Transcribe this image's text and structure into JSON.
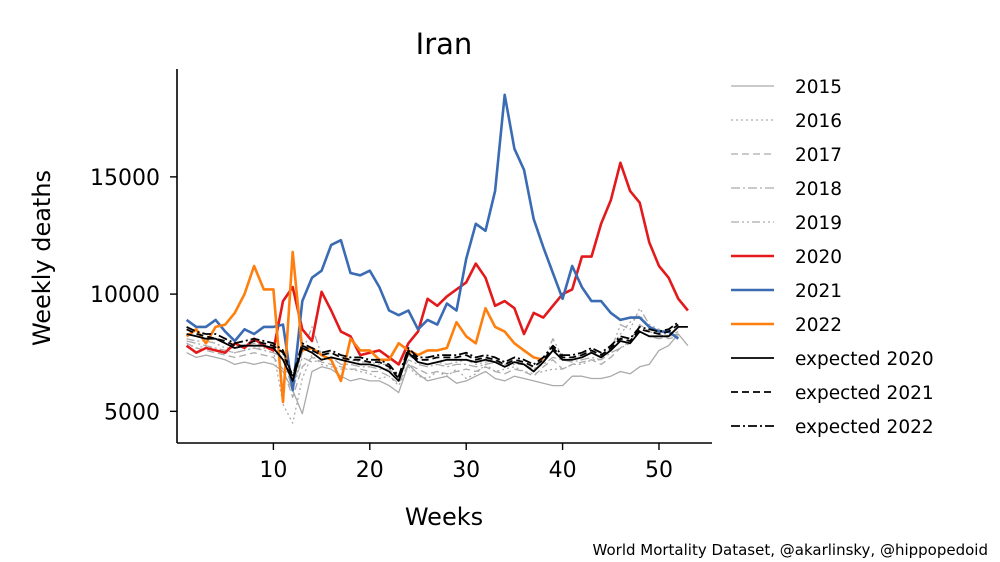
{
  "chart_data": {
    "type": "line",
    "title": "Iran",
    "xlabel": "Weeks",
    "ylabel": "Weekly deaths",
    "xlim": [
      0,
      55.5
    ],
    "ylim": [
      3650,
      19600
    ],
    "xticks": [
      10,
      20,
      30,
      40,
      50
    ],
    "yticks": [
      5000,
      10000,
      15000
    ],
    "grid": false,
    "legend_position": "right-outside",
    "credit": "World Mortality Dataset, @akarlinsky, @hippopedoid",
    "series": [
      {
        "name": "2015",
        "color": "#aaaaaa",
        "dash": "solid",
        "width": 1.3,
        "x": [
          1,
          2,
          3,
          4,
          5,
          6,
          7,
          8,
          9,
          10,
          11,
          12,
          13,
          14,
          15,
          16,
          17,
          18,
          19,
          20,
          21,
          22,
          23,
          24,
          25,
          26,
          27,
          28,
          29,
          30,
          31,
          32,
          33,
          34,
          35,
          36,
          37,
          38,
          39,
          40,
          41,
          42,
          43,
          44,
          45,
          46,
          47,
          48,
          49,
          50,
          51,
          52,
          53
        ],
        "values": [
          7500,
          7300,
          7400,
          7300,
          7200,
          7000,
          7100,
          7000,
          7100,
          7000,
          6700,
          5900,
          4900,
          6700,
          6900,
          6800,
          6500,
          6300,
          6400,
          6300,
          6300,
          6100,
          5800,
          7000,
          6600,
          6300,
          6400,
          6500,
          6200,
          6300,
          6500,
          6700,
          6400,
          6300,
          6500,
          6400,
          6300,
          6200,
          6100,
          6100,
          6500,
          6500,
          6400,
          6400,
          6500,
          6700,
          6600,
          6900,
          7000,
          7600,
          7800,
          8300,
          7800
        ]
      },
      {
        "name": "2016",
        "color": "#aaaaaa",
        "dash": "dotted",
        "width": 1.3,
        "x": [
          1,
          2,
          3,
          4,
          5,
          6,
          7,
          8,
          9,
          10,
          11,
          12,
          13,
          14,
          15,
          16,
          17,
          18,
          19,
          20,
          21,
          22,
          23,
          24,
          25,
          26,
          27,
          28,
          29,
          30,
          31,
          32,
          33,
          34,
          35,
          36,
          37,
          38,
          39,
          40,
          41,
          42,
          43,
          44,
          45,
          46,
          47,
          48,
          49,
          50,
          51,
          52
        ],
        "values": [
          7900,
          7700,
          7800,
          7600,
          7600,
          7500,
          7600,
          7700,
          7700,
          7600,
          5300,
          4500,
          6400,
          7400,
          7000,
          6900,
          6800,
          6800,
          6700,
          6600,
          6400,
          6500,
          6100,
          6900,
          6500,
          6400,
          6700,
          6500,
          6800,
          6400,
          6600,
          7000,
          6700,
          6800,
          6900,
          6700,
          6600,
          6700,
          6800,
          6800,
          7000,
          7000,
          7200,
          7200,
          7700,
          8300,
          8800,
          9100,
          8600,
          8300,
          8300,
          8500
        ]
      },
      {
        "name": "2017",
        "color": "#aaaaaa",
        "dash": "dashed",
        "width": 1.3,
        "x": [
          1,
          2,
          3,
          4,
          5,
          6,
          7,
          8,
          9,
          10,
          11,
          12,
          13,
          14,
          15,
          16,
          17,
          18,
          19,
          20,
          21,
          22,
          23,
          24,
          25,
          26,
          27,
          28,
          29,
          30,
          31,
          32,
          33,
          34,
          35,
          36,
          37,
          38,
          39,
          40,
          41,
          42,
          43,
          44,
          45,
          46,
          47,
          48,
          49,
          50,
          51,
          52
        ],
        "values": [
          7900,
          7700,
          7600,
          7500,
          7400,
          7300,
          7400,
          7500,
          7400,
          7300,
          6800,
          5600,
          6900,
          7300,
          7100,
          7000,
          6900,
          6800,
          6800,
          6700,
          6700,
          6500,
          6200,
          7000,
          6800,
          6600,
          6700,
          6600,
          6700,
          6800,
          6700,
          6900,
          6700,
          6600,
          6800,
          6700,
          6500,
          6900,
          7200,
          6800,
          7000,
          7100,
          7200,
          7000,
          7300,
          7700,
          8000,
          8700,
          8400,
          8300,
          8100,
          8200
        ]
      },
      {
        "name": "2018",
        "color": "#aaaaaa",
        "dash": "dashdot",
        "width": 1.3,
        "x": [
          1,
          2,
          3,
          4,
          5,
          6,
          7,
          8,
          9,
          10,
          11,
          12,
          13,
          14,
          15,
          16,
          17,
          18,
          19,
          20,
          21,
          22,
          23,
          24,
          25,
          26,
          27,
          28,
          29,
          30,
          31,
          32,
          33,
          34,
          35,
          36,
          37,
          38,
          39,
          40,
          41,
          42,
          43,
          44,
          45,
          46,
          47,
          48,
          49,
          50,
          51,
          52
        ],
        "values": [
          8000,
          7900,
          7800,
          7700,
          7600,
          7500,
          7600,
          7700,
          7600,
          7500,
          7300,
          5900,
          7300,
          7100,
          7200,
          7300,
          7000,
          7000,
          6900,
          6900,
          6800,
          6800,
          6400,
          7200,
          7000,
          6900,
          7000,
          6900,
          7000,
          7000,
          6900,
          7000,
          7100,
          6900,
          7000,
          7000,
          6800,
          7000,
          7300,
          7200,
          7100,
          7200,
          7300,
          7200,
          7500,
          7700,
          7900,
          8400,
          8200,
          8100,
          8200,
          8300
        ]
      },
      {
        "name": "2019",
        "color": "#aaaaaa",
        "dash": "dashdotdot",
        "width": 1.3,
        "x": [
          1,
          2,
          3,
          4,
          5,
          6,
          7,
          8,
          9,
          10,
          11,
          12,
          13,
          14,
          15,
          16,
          17,
          18,
          19,
          20,
          21,
          22,
          23,
          24,
          25,
          26,
          27,
          28,
          29,
          30,
          31,
          32,
          33,
          34,
          35,
          36,
          37,
          38,
          39,
          40,
          41,
          42,
          43,
          44,
          45,
          46,
          47,
          48,
          49,
          50,
          51,
          52
        ],
        "values": [
          8100,
          8000,
          8000,
          7900,
          7700,
          7700,
          7800,
          7900,
          7800,
          7700,
          7500,
          6000,
          7500,
          8600,
          7400,
          7500,
          7300,
          7200,
          7100,
          7100,
          7000,
          7000,
          6500,
          7400,
          7100,
          7000,
          7100,
          7000,
          7100,
          7200,
          7000,
          7100,
          7200,
          7000,
          7100,
          7000,
          6800,
          7100,
          8100,
          7300,
          7300,
          7400,
          7500,
          7300,
          7600,
          8700,
          8500,
          9400,
          8700,
          8500,
          8200,
          8400
        ]
      },
      {
        "name": "2020",
        "color": "#e31a1c",
        "dash": "solid",
        "width": 2.6,
        "x": [
          1,
          2,
          3,
          4,
          5,
          6,
          7,
          8,
          9,
          10,
          11,
          12,
          13,
          14,
          15,
          16,
          17,
          18,
          19,
          20,
          21,
          22,
          23,
          24,
          25,
          26,
          27,
          28,
          29,
          30,
          31,
          32,
          33,
          34,
          35,
          36,
          37,
          38,
          39,
          40,
          41,
          42,
          43,
          44,
          45,
          46,
          47,
          48,
          49,
          50,
          51,
          52,
          53
        ],
        "values": [
          7800,
          7500,
          7700,
          7600,
          7500,
          7900,
          7700,
          8100,
          7800,
          7600,
          9700,
          10300,
          8500,
          8000,
          10100,
          9300,
          8400,
          8200,
          7400,
          7500,
          7600,
          7300,
          7000,
          7900,
          8400,
          9800,
          9500,
          9900,
          10200,
          10500,
          11300,
          10700,
          9500,
          9700,
          9400,
          8300,
          9200,
          9000,
          9500,
          10000,
          10200,
          11600,
          11600,
          13000,
          14000,
          15600,
          14400,
          13900,
          12200,
          11200,
          10700,
          9800,
          9300
        ]
      },
      {
        "name": "2021",
        "color": "#3a6bb3",
        "dash": "solid",
        "width": 2.6,
        "x": [
          1,
          2,
          3,
          4,
          5,
          6,
          7,
          8,
          9,
          10,
          11,
          12,
          13,
          14,
          15,
          16,
          17,
          18,
          19,
          20,
          21,
          22,
          23,
          24,
          25,
          26,
          27,
          28,
          29,
          30,
          31,
          32,
          33,
          34,
          35,
          36,
          37,
          38,
          39,
          40,
          41,
          42,
          43,
          44,
          45,
          46,
          47,
          48,
          49,
          50,
          51,
          52
        ],
        "values": [
          8900,
          8600,
          8600,
          8900,
          8400,
          8000,
          8500,
          8300,
          8600,
          8600,
          8700,
          5900,
          9700,
          10700,
          11000,
          12100,
          12300,
          10900,
          10800,
          11000,
          10300,
          9300,
          9100,
          9300,
          8500,
          8900,
          8700,
          9600,
          9300,
          11500,
          13000,
          12700,
          14400,
          18500,
          16200,
          15300,
          13200,
          12000,
          10900,
          9800,
          11200,
          10300,
          9700,
          9700,
          9200,
          8900,
          9000,
          9000,
          8600,
          8400,
          8400,
          8100
        ]
      },
      {
        "name": "2022",
        "color": "#ff7f0e",
        "dash": "solid",
        "width": 2.6,
        "x": [
          1,
          2,
          3,
          4,
          5,
          6,
          7,
          8,
          9,
          10,
          11,
          12,
          13,
          14,
          15,
          16,
          17,
          18,
          19,
          20,
          21,
          22,
          23,
          24,
          25,
          26,
          27,
          28,
          29,
          30,
          31,
          32,
          33,
          34,
          35,
          36,
          37,
          38
        ],
        "values": [
          8200,
          8500,
          7900,
          8600,
          8700,
          9200,
          10000,
          11200,
          10200,
          10200,
          5400,
          11800,
          7600,
          7700,
          7400,
          7200,
          6300,
          8100,
          7600,
          7600,
          7200,
          7200,
          7900,
          7600,
          7400,
          7600,
          7600,
          7700,
          8800,
          8200,
          7900,
          9400,
          8600,
          8400,
          7900,
          7600,
          7300,
          7200
        ]
      },
      {
        "name": "expected 2020",
        "color": "#000000",
        "dash": "solid",
        "width": 1.8,
        "x": [
          1,
          2,
          3,
          4,
          5,
          6,
          7,
          8,
          9,
          10,
          11,
          12,
          13,
          14,
          15,
          16,
          17,
          18,
          19,
          20,
          21,
          22,
          23,
          24,
          25,
          26,
          27,
          28,
          29,
          30,
          31,
          32,
          33,
          34,
          35,
          36,
          37,
          38,
          39,
          40,
          41,
          42,
          43,
          44,
          45,
          46,
          47,
          48,
          49,
          50,
          51,
          52,
          53
        ],
        "values": [
          8300,
          8200,
          8100,
          8100,
          7900,
          7700,
          7800,
          7800,
          7800,
          7700,
          7200,
          6300,
          7700,
          7500,
          7200,
          7300,
          7200,
          7100,
          7000,
          7000,
          6900,
          6700,
          6300,
          7500,
          7100,
          7000,
          7100,
          7200,
          7200,
          7200,
          7100,
          7200,
          7100,
          6900,
          7100,
          7000,
          6700,
          7100,
          7600,
          7200,
          7200,
          7300,
          7500,
          7300,
          7600,
          8000,
          7900,
          8400,
          8200,
          8200,
          8200,
          8600,
          8600
        ]
      },
      {
        "name": "expected 2021",
        "color": "#000000",
        "dash": "dashed",
        "width": 1.8,
        "x": [
          1,
          2,
          3,
          4,
          5,
          6,
          7,
          8,
          9,
          10,
          11,
          12,
          13,
          14,
          15,
          16,
          17,
          18,
          19,
          20,
          21,
          22,
          23,
          24,
          25,
          26,
          27,
          28,
          29,
          30,
          31,
          32,
          33,
          34,
          35,
          36,
          37,
          38,
          39,
          40,
          41,
          42,
          43,
          44,
          45,
          46,
          47,
          48,
          49,
          50,
          51,
          52
        ],
        "values": [
          8500,
          8300,
          8200,
          8100,
          8000,
          7800,
          7800,
          8000,
          7900,
          7800,
          7500,
          6400,
          7800,
          7600,
          7400,
          7500,
          7300,
          7200,
          7200,
          7100,
          7100,
          6900,
          6400,
          7600,
          7200,
          7200,
          7300,
          7300,
          7300,
          7400,
          7200,
          7300,
          7200,
          7000,
          7200,
          7100,
          6900,
          7200,
          7700,
          7300,
          7300,
          7400,
          7600,
          7400,
          7700,
          8100,
          8000,
          8500,
          8400,
          8300,
          8400,
          8700
        ]
      },
      {
        "name": "expected 2022",
        "color": "#000000",
        "dash": "dashdot",
        "width": 1.8,
        "x": [
          1,
          2,
          3,
          4,
          5,
          6,
          7,
          8,
          9,
          10,
          11,
          12,
          13,
          14,
          15,
          16,
          17,
          18,
          19,
          20,
          21,
          22,
          23,
          24,
          25,
          26,
          27,
          28,
          29,
          30,
          31,
          32,
          33,
          34,
          35,
          36,
          37,
          38,
          39,
          40,
          41,
          42,
          43,
          44,
          45,
          46,
          47,
          48,
          49,
          50,
          51,
          52
        ],
        "values": [
          8600,
          8400,
          8300,
          8300,
          8100,
          7900,
          8000,
          8100,
          8000,
          7900,
          7600,
          6500,
          7900,
          7700,
          7500,
          7600,
          7400,
          7300,
          7300,
          7200,
          7200,
          7000,
          6500,
          7700,
          7300,
          7300,
          7400,
          7400,
          7400,
          7500,
          7300,
          7400,
          7300,
          7100,
          7300,
          7200,
          7000,
          7300,
          7800,
          7400,
          7400,
          7500,
          7700,
          7500,
          7800,
          8200,
          8100,
          8600,
          8500,
          8400,
          8500,
          8800
        ]
      }
    ]
  }
}
